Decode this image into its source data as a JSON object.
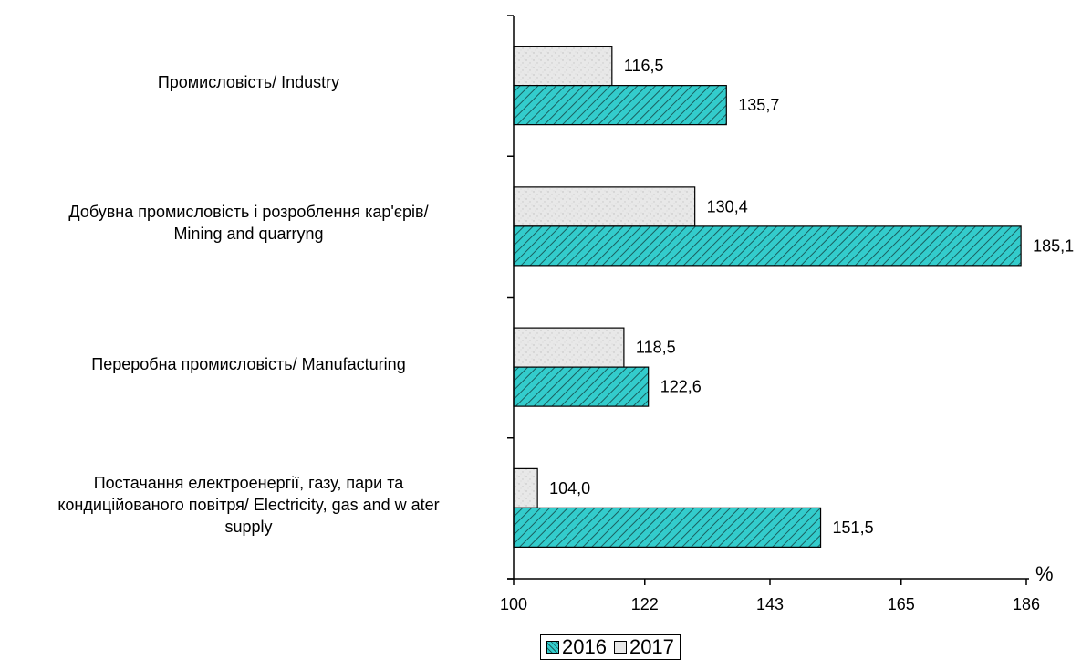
{
  "chart_data": {
    "type": "bar",
    "orientation": "horizontal",
    "unit": "%",
    "categories": [
      "Промисловість/ Industry",
      "Добувна промисловість і розроблення кар'єрів/ Mining and quarryng",
      "Переробна промисловість/ Manufacturing",
      "Постачання електроенергії, газу, пари та кондиційованого повітря/ Electricity, gas and w ater supply"
    ],
    "category_lines": [
      [
        "Промисловість/ Industry"
      ],
      [
        "Добувна промисловість і розроблення кар'єрів/",
        "Mining and quarryng"
      ],
      [
        "Переробна промисловість/ Manufacturing"
      ],
      [
        "Постачання електроенергії, газу, пари та",
        "кондиційованого повітря/ Electricity, gas and w ater",
        "supply"
      ]
    ],
    "series": [
      {
        "name": "2016",
        "values": [
          135.7,
          185.1,
          122.6,
          151.5
        ],
        "labels": [
          "135,7",
          "185,1",
          "122,6",
          "151,5"
        ],
        "color": "#33cccc",
        "pattern": "diagonal-hatch"
      },
      {
        "name": "2017",
        "values": [
          116.5,
          130.4,
          118.5,
          104.0
        ],
        "labels": [
          "116,5",
          "130,4",
          "118,5",
          "104,0"
        ],
        "color": "#e6e6e6",
        "pattern": "speckled"
      }
    ],
    "xlim": [
      100,
      186
    ],
    "xticks": [
      100,
      122,
      143,
      165,
      186
    ],
    "xtick_labels": [
      "100",
      "122",
      "143",
      "165",
      "186"
    ],
    "legend": {
      "position": "bottom",
      "entries": [
        "2016",
        "2017"
      ]
    },
    "grid": false
  }
}
